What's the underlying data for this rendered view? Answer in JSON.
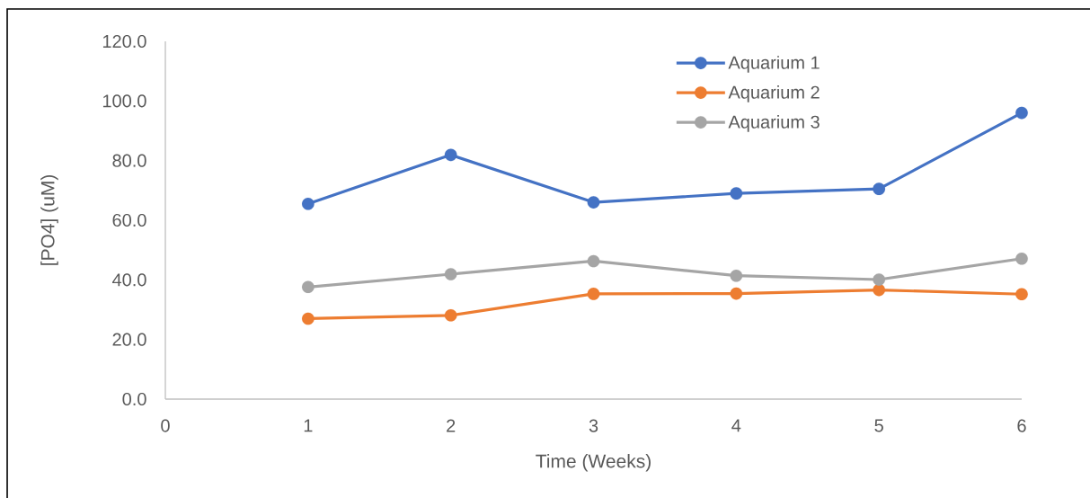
{
  "chart_data": {
    "type": "line",
    "xlabel": "Time (Weeks)",
    "ylabel": "[PO4] (uM)",
    "x": [
      1,
      2,
      3,
      4,
      5,
      6
    ],
    "series": [
      {
        "name": "Aquarium 1",
        "color": "#4472c4",
        "values": [
          65.5,
          81.9,
          66.0,
          69.0,
          70.5,
          96.0
        ]
      },
      {
        "name": "Aquarium 2",
        "color": "#ed7d31",
        "values": [
          27.0,
          28.1,
          35.3,
          35.4,
          36.6,
          35.2
        ]
      },
      {
        "name": "Aquarium 3",
        "color": "#a5a5a5",
        "values": [
          37.6,
          41.9,
          46.3,
          41.4,
          40.1,
          47.1
        ]
      }
    ],
    "xlim": [
      0,
      6
    ],
    "xticks": [
      0,
      1,
      2,
      3,
      4,
      5,
      6
    ],
    "ylim": [
      0,
      120
    ],
    "yticks": [
      {
        "value": 0,
        "label": "0.0"
      },
      {
        "value": 20,
        "label": "20.0"
      },
      {
        "value": 40,
        "label": "40.0"
      },
      {
        "value": 60,
        "label": "60.0"
      },
      {
        "value": 80,
        "label": "80.0"
      },
      {
        "value": 100,
        "label": "100.0"
      },
      {
        "value": 120,
        "label": "120.0"
      }
    ],
    "legend": "top right",
    "marker": "circle",
    "line_style": "solid"
  }
}
